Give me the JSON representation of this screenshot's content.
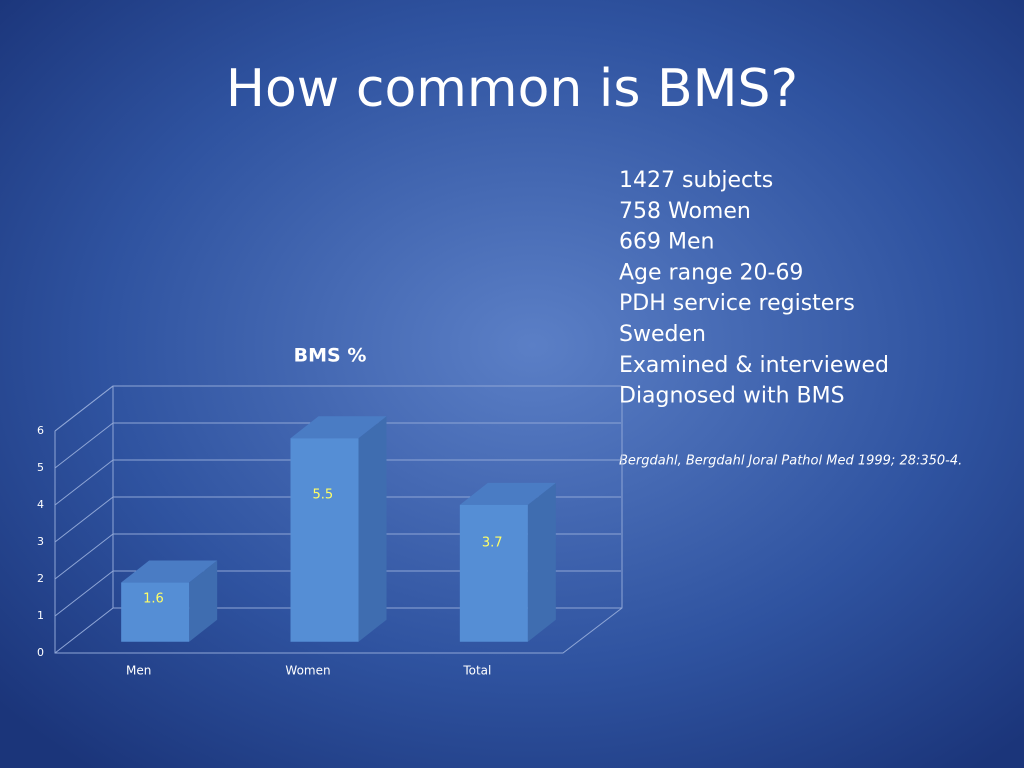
{
  "title": "How common is BMS?",
  "notes": [
    "1427 subjects",
    "758 Women",
    "669 Men",
    "Age range 20-69",
    "PDH service registers",
    "Sweden",
    "Examined & interviewed",
    "Diagnosed with BMS"
  ],
  "citation": "Bergdahl, Bergdahl Joral Pathol Med 1999; 28:350-4.",
  "chart_data": {
    "type": "bar",
    "title": "BMS %",
    "categories": [
      "Men",
      "Women",
      "Total"
    ],
    "values": [
      1.6,
      5.5,
      3.7
    ],
    "color": "#558ed5",
    "ylim": [
      0,
      6
    ],
    "yticks": [
      0,
      1,
      2,
      3,
      4,
      5,
      6
    ],
    "grid": true
  }
}
